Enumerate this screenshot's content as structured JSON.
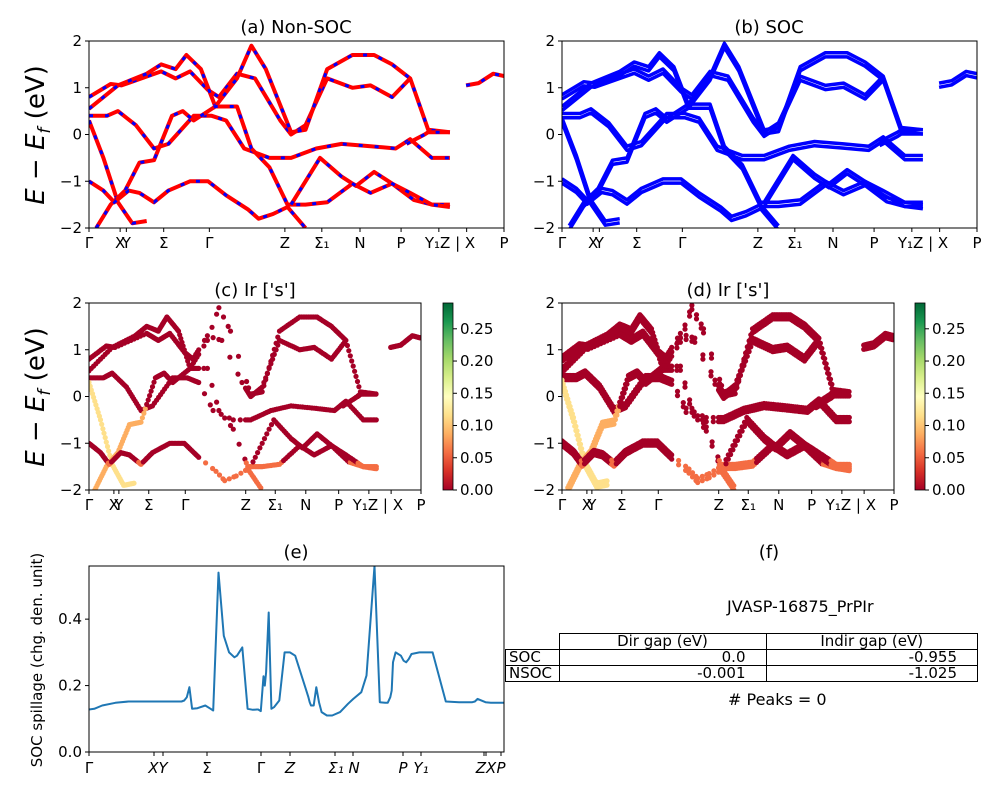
{
  "figure": {
    "material_id": "JVASP-16875_PrPIr",
    "peaks_text": "# Peaks = 0"
  },
  "chart_data": [
    {
      "id": "a",
      "type": "line",
      "title": "(a) Non-SOC",
      "ylabel": "E − E_f (eV)",
      "ylim": [
        -2,
        2
      ],
      "yticks": [
        "2",
        "1",
        "0",
        "−1",
        "−2"
      ],
      "xticks": [
        "Γ",
        "X",
        "Y",
        "Σ",
        "Γ",
        "Z",
        "Σ₁",
        "N",
        "P",
        "Y₁Z | X",
        "P"
      ],
      "style": "red solid with blue dashed overlay (spin up/down)",
      "colors": {
        "line": "#ff0000",
        "dash": "#0000ff"
      },
      "series_note": "Band dispersions along high-symmetry path; approximate traced bands (energy in eV vs path fraction)",
      "bands": [
        [
          [
            0,
            0.8
          ],
          [
            0.06,
            1.08
          ],
          [
            0.09,
            1.05
          ],
          [
            0.2,
            1.35
          ],
          [
            0.24,
            1.2
          ],
          [
            0.28,
            1.35
          ],
          [
            0.33,
            0.95
          ],
          [
            0.36,
            0.8
          ],
          [
            0.41,
            1.3
          ],
          [
            0.46,
            1.2
          ],
          [
            0.53,
            0.3
          ],
          [
            0.56,
            0
          ],
          [
            0.6,
            0.2
          ],
          [
            0.66,
            1.2
          ],
          [
            0.73,
            1.0
          ],
          [
            0.78,
            1.05
          ],
          [
            0.84,
            0.8
          ],
          [
            0.89,
            1.2
          ]
        ],
        [
          [
            0,
            0.55
          ],
          [
            0.08,
            1.05
          ],
          [
            0.16,
            1.3
          ],
          [
            0.2,
            1.5
          ],
          [
            0.24,
            1.4
          ],
          [
            0.27,
            1.7
          ],
          [
            0.31,
            1.4
          ],
          [
            0.35,
            0.6
          ],
          [
            0.41,
            1.2
          ],
          [
            0.45,
            1.9
          ],
          [
            0.49,
            1.4
          ],
          [
            0.56,
            0.05
          ],
          [
            0.6,
            0.1
          ],
          [
            0.66,
            1.4
          ],
          [
            0.73,
            1.7
          ],
          [
            0.79,
            1.7
          ],
          [
            0.84,
            1.5
          ],
          [
            0.89,
            1.2
          ],
          [
            0.94,
            0.1
          ],
          [
            1.0,
            0.05
          ]
        ],
        [
          [
            0,
            0.4
          ],
          [
            0.05,
            0.4
          ],
          [
            0.08,
            0.5
          ],
          [
            0.13,
            0.2
          ],
          [
            0.18,
            -0.3
          ],
          [
            0.22,
            -0.2
          ],
          [
            0.29,
            0.4
          ],
          [
            0.34,
            0.4
          ],
          [
            0.38,
            0.3
          ],
          [
            0.43,
            -0.3
          ],
          [
            0.5,
            -0.5
          ],
          [
            0.56,
            -0.5
          ],
          [
            0.63,
            -0.3
          ],
          [
            0.7,
            -0.2
          ],
          [
            0.78,
            -0.25
          ],
          [
            0.85,
            -0.3
          ],
          [
            0.89,
            -0.1
          ],
          [
            0.95,
            -0.5
          ],
          [
            1.0,
            -0.5
          ]
        ],
        [
          [
            0,
            0.3
          ],
          [
            0.04,
            -0.5
          ],
          [
            0.08,
            -1.45
          ],
          [
            0.12,
            -1.9
          ],
          [
            0.16,
            -1.85
          ]
        ],
        [
          [
            0.02,
            -2
          ],
          [
            0.06,
            -1.5
          ],
          [
            0.1,
            -1.2
          ],
          [
            0.14,
            -0.6
          ],
          [
            0.18,
            -0.55
          ],
          [
            0.23,
            0.4
          ],
          [
            0.26,
            0.5
          ],
          [
            0.29,
            0.3
          ],
          [
            0.35,
            0.6
          ],
          [
            0.41,
            0.6
          ],
          [
            0.45,
            -0.3
          ],
          [
            0.5,
            -0.7
          ],
          [
            0.55,
            -1.5
          ],
          [
            0.6,
            -1.5
          ],
          [
            0.66,
            -1.45
          ],
          [
            0.73,
            -1.05
          ],
          [
            0.78,
            -1.25
          ],
          [
            0.84,
            -1.05
          ],
          [
            0.9,
            -1.4
          ],
          [
            0.95,
            -1.5
          ],
          [
            1.0,
            -1.5
          ]
        ],
        [
          [
            0,
            -1.0
          ],
          [
            0.04,
            -1.2
          ],
          [
            0.07,
            -1.45
          ],
          [
            0.11,
            -1.2
          ],
          [
            0.14,
            -1.25
          ],
          [
            0.18,
            -1.45
          ],
          [
            0.22,
            -1.2
          ],
          [
            0.28,
            -1.0
          ],
          [
            0.33,
            -1.0
          ],
          [
            0.38,
            -1.3
          ],
          [
            0.44,
            -1.6
          ],
          [
            0.47,
            -1.8
          ],
          [
            0.51,
            -1.7
          ],
          [
            0.55,
            -1.55
          ],
          [
            0.6,
            -2.0
          ]
        ],
        [
          [
            0.56,
            -1.5
          ],
          [
            0.64,
            -0.5
          ],
          [
            0.7,
            -0.9
          ],
          [
            0.74,
            -1.1
          ],
          [
            0.79,
            -0.8
          ],
          [
            0.84,
            -1.05
          ],
          [
            0.89,
            -1.25
          ],
          [
            0.95,
            -1.5
          ],
          [
            1.0,
            -1.55
          ]
        ],
        [
          [
            0.88,
            -0.2
          ],
          [
            0.93,
            0.0
          ],
          [
            0.94,
            0.05
          ],
          [
            1.0,
            0.05
          ]
        ],
        [
          [
            1.045,
            1.05
          ],
          [
            1.08,
            1.1
          ],
          [
            1.12,
            1.3
          ],
          [
            1.15,
            1.25
          ]
        ]
      ]
    },
    {
      "id": "b",
      "type": "line",
      "title": "(b) SOC",
      "ylim": [
        -2,
        2
      ],
      "yticks": [
        "2",
        "1",
        "0",
        "−1",
        "−2"
      ],
      "xticks": [
        "Γ",
        "X",
        "Y",
        "Σ",
        "Γ",
        "Z",
        "Σ₁",
        "N",
        "P",
        "Y₁Z | X",
        "P"
      ],
      "colors": {
        "line": "#0000ff"
      },
      "series_note": "SOC-split band structure; bands appear doubled relative to (a)"
    },
    {
      "id": "c",
      "type": "scatter",
      "title": "(c)  Ir ['s']",
      "ylabel": "E − E_f (eV)",
      "ylim": [
        -2,
        2
      ],
      "yticks": [
        "2",
        "1",
        "0",
        "−1",
        "−2"
      ],
      "xticks": [
        "Γ",
        "X",
        "Y",
        "Σ",
        "Γ",
        "Z",
        "Σ₁",
        "N",
        "P",
        "Y₁",
        "Z | X",
        "P"
      ],
      "colorbar": {
        "cmap": "RdYlGn",
        "range": [
          0.0,
          0.29
        ],
        "ticks": [
          "0.00",
          "0.05",
          "0.10",
          "0.15",
          "0.20",
          "0.25"
        ]
      },
      "series_note": "Ir s-orbital projected bands (Non-SOC), color = projection weight"
    },
    {
      "id": "d",
      "type": "scatter",
      "title": "(d) Ir ['s']",
      "ylim": [
        -2,
        2
      ],
      "yticks": [
        "2",
        "1",
        "0",
        "−1",
        "−2"
      ],
      "xticks": [
        "Γ",
        "X",
        "Y",
        "Σ",
        "Γ",
        "Z",
        "Σ₁",
        "N",
        "P",
        "Y₁",
        "Z | X",
        "P"
      ],
      "colorbar": {
        "cmap": "RdYlGn",
        "range": [
          0.0,
          0.29
        ],
        "ticks": [
          "0.00",
          "0.05",
          "0.10",
          "0.15",
          "0.20",
          "0.25"
        ]
      },
      "series_note": "Ir s-orbital projected bands (SOC), color = projection weight"
    },
    {
      "id": "e",
      "type": "line",
      "title": "(e)",
      "ylabel": "SOC spillage (chg. den. unit)",
      "ylim": [
        0.0,
        0.56
      ],
      "yticks": [
        "0.0",
        "0.2",
        "0.4"
      ],
      "xticks": [
        "Γ",
        "XY",
        "Σ",
        "Γ",
        "Z",
        "Σ₁ N",
        "P",
        "Y₁",
        "ZX",
        "P"
      ],
      "color": "#1f77b4",
      "x": [
        0,
        0.02,
        0.05,
        0.1,
        0.15,
        0.2,
        0.25,
        0.3,
        0.35,
        0.36,
        0.37,
        0.38,
        0.39,
        0.41,
        0.44,
        0.46,
        0.47,
        0.49,
        0.51,
        0.53,
        0.55,
        0.56,
        0.58,
        0.6,
        0.62,
        0.635,
        0.64,
        0.65,
        0.66,
        0.665,
        0.67,
        0.68,
        0.69,
        0.7,
        0.72,
        0.74,
        0.76,
        0.78,
        0.8,
        0.82,
        0.83,
        0.835,
        0.84,
        0.85,
        0.86,
        0.87,
        0.88,
        0.9,
        0.92,
        0.95,
        0.98,
        1.0,
        1.03,
        1.05,
        1.08,
        1.1,
        1.12,
        1.13,
        1.14,
        1.145,
        1.15,
        1.16,
        1.18,
        1.19,
        1.2,
        1.21,
        1.22,
        1.25,
        1.3,
        1.35,
        1.4,
        1.45,
        1.46,
        1.47,
        1.5,
        1.52,
        1.54,
        1.55,
        1.56,
        1.57
      ],
      "values": [
        0.128,
        0.13,
        0.14,
        0.148,
        0.152,
        0.152,
        0.152,
        0.152,
        0.152,
        0.155,
        0.165,
        0.195,
        0.13,
        0.132,
        0.14,
        0.13,
        0.125,
        0.54,
        0.35,
        0.3,
        0.285,
        0.29,
        0.315,
        0.13,
        0.127,
        0.128,
        0.128,
        0.123,
        0.228,
        0.2,
        0.24,
        0.42,
        0.13,
        0.135,
        0.155,
        0.3,
        0.3,
        0.29,
        0.24,
        0.19,
        0.165,
        0.15,
        0.14,
        0.14,
        0.195,
        0.15,
        0.12,
        0.11,
        0.11,
        0.12,
        0.145,
        0.16,
        0.18,
        0.23,
        0.56,
        0.15,
        0.148,
        0.148,
        0.165,
        0.185,
        0.27,
        0.3,
        0.29,
        0.275,
        0.27,
        0.28,
        0.295,
        0.3,
        0.3,
        0.152,
        0.15,
        0.15,
        0.152,
        0.16,
        0.15,
        0.148,
        0.148,
        0.148,
        0.148,
        0.148
      ],
      "xlim": [
        0,
        1.57
      ]
    },
    {
      "id": "f",
      "type": "table",
      "title": "(f)",
      "caption": "JVASP-16875_PrPIr",
      "columns": [
        "",
        "Dir gap (eV)",
        "Indir gap (eV)"
      ],
      "rows": [
        [
          "SOC",
          "0.0",
          "-0.955"
        ],
        [
          "NSOC",
          "-0.001",
          "-1.025"
        ]
      ],
      "footer": "# Peaks = 0"
    }
  ]
}
